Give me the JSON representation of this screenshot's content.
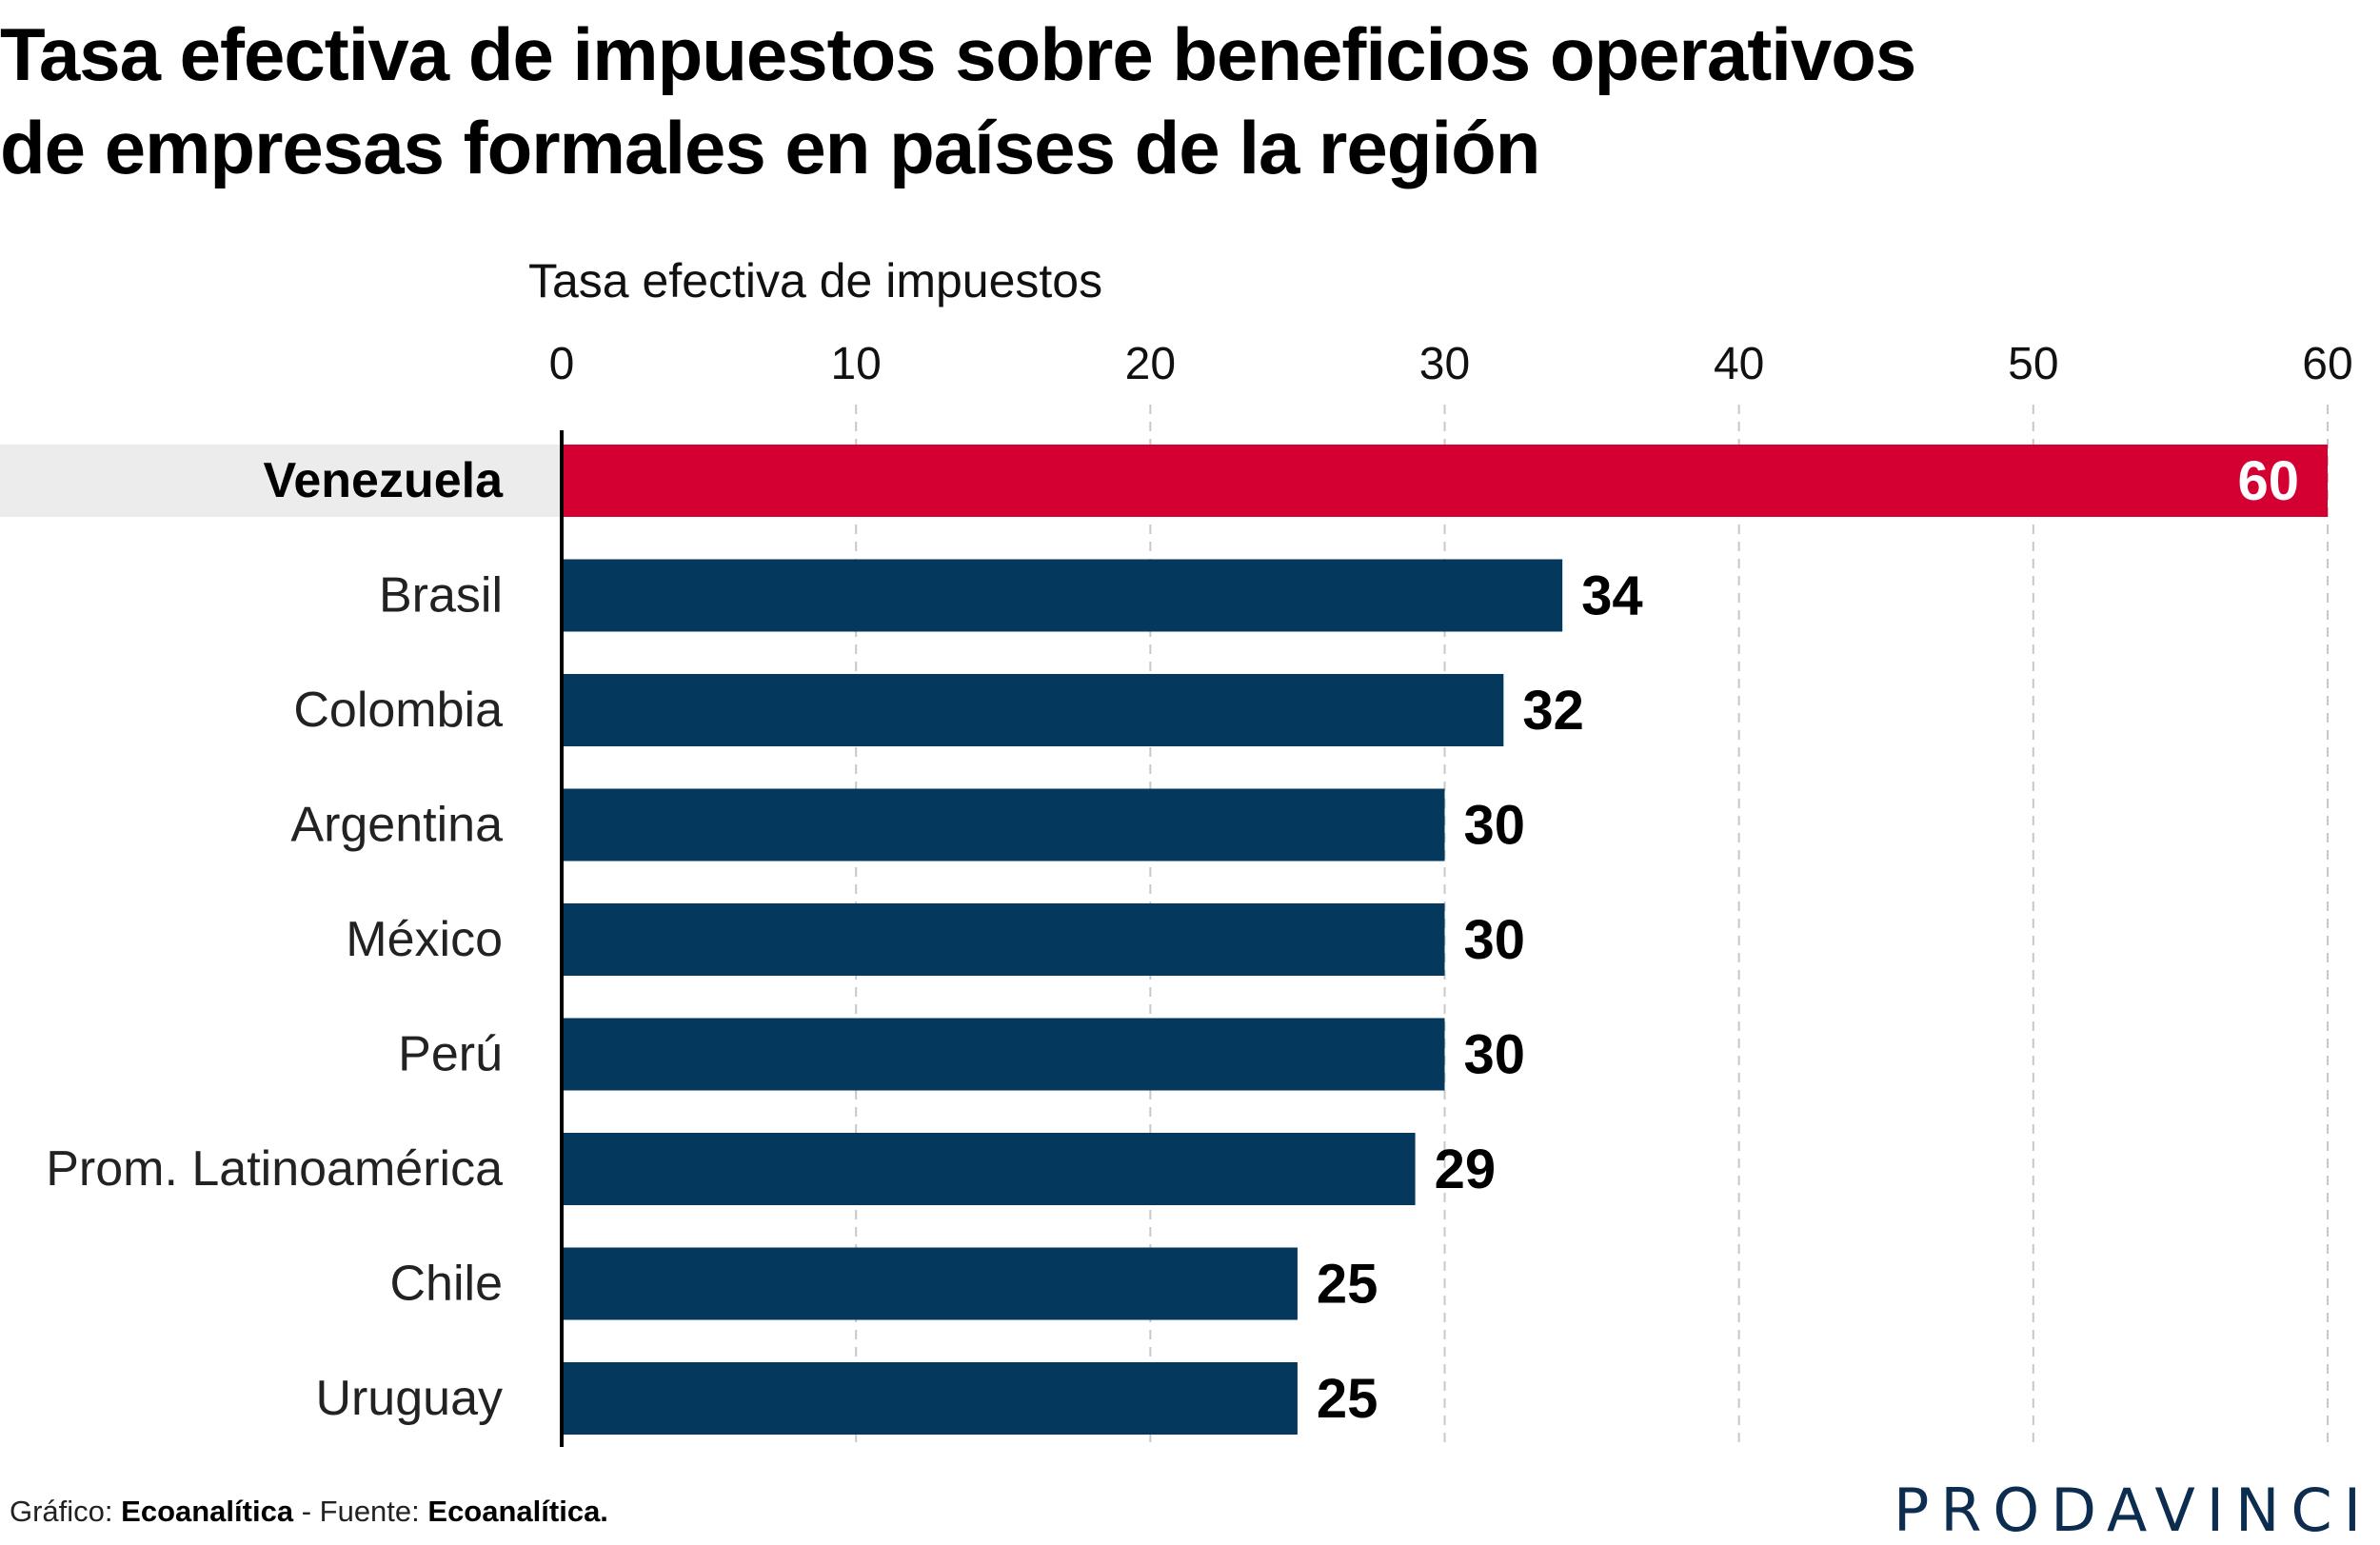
{
  "chart_data": {
    "type": "bar",
    "orientation": "horizontal",
    "title_lines": [
      "Tasa efectiva de impuestos sobre beneficios operativos",
      "de empresas formales en países de la región"
    ],
    "xlabel": "Tasa efectiva de impuestos",
    "xlim": [
      0,
      60
    ],
    "xticks": [
      0,
      10,
      20,
      30,
      40,
      50,
      60
    ],
    "grid": "vertical-dashed",
    "categories": [
      "Venezuela",
      "Brasil",
      "Colombia",
      "Argentina",
      "México",
      "Perú",
      "Prom. Latinoamérica",
      "Chile",
      "Uruguay"
    ],
    "values": [
      60,
      34,
      32,
      30,
      30,
      30,
      29,
      25,
      25
    ],
    "highlight": "Venezuela",
    "colors": {
      "highlight": "#d50032",
      "bar": "#04385c",
      "highlight_band": "#ececec",
      "grid": "#c8c8c8",
      "axis": "#000000"
    }
  },
  "footer": {
    "grafico_label": "Gráfico: ",
    "grafico_value": "Ecoanalítica",
    "separator": " - ",
    "fuente_label": "Fuente: ",
    "fuente_value": "Ecoanalítica."
  },
  "brand": "PRODAVINCI"
}
